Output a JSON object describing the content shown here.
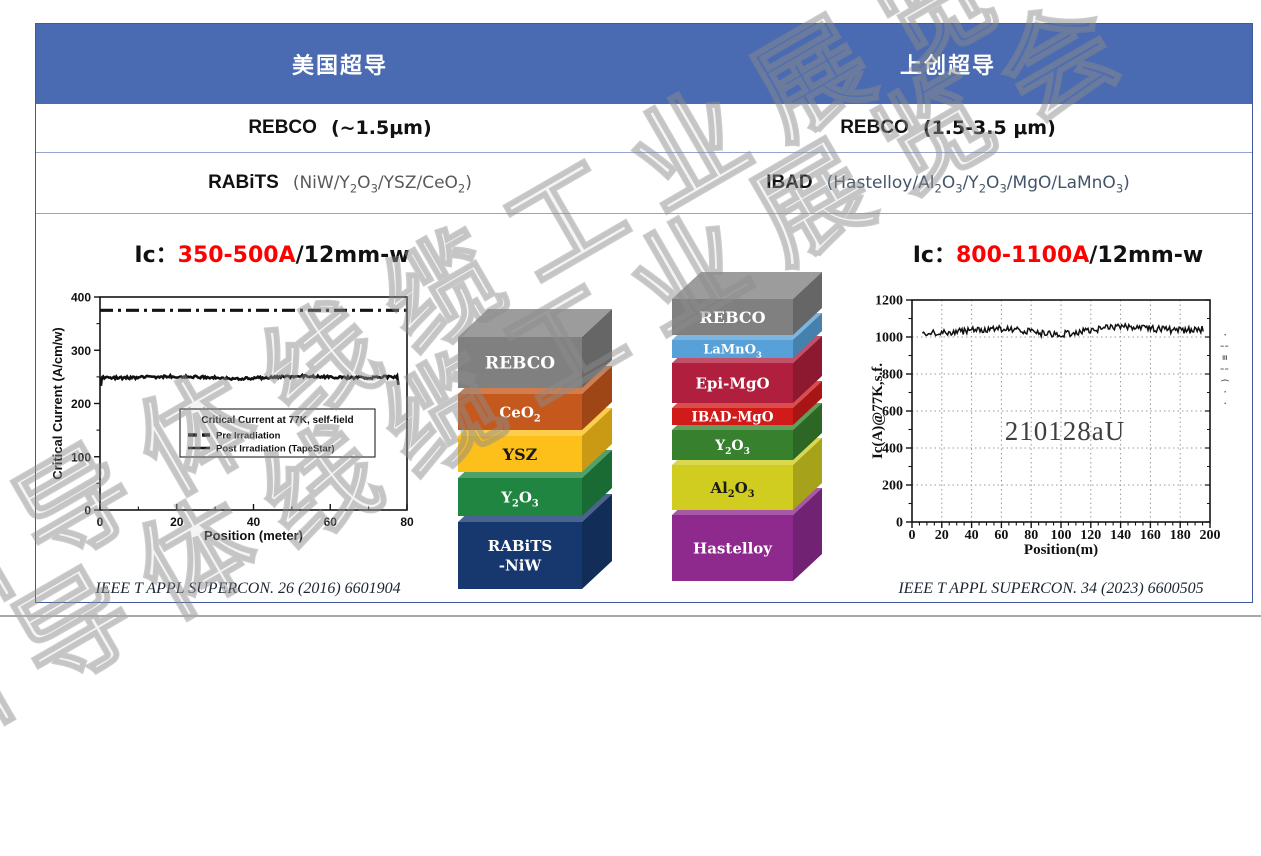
{
  "slide": {
    "companies": {
      "left": "美国超导",
      "right": "上创超导"
    },
    "film_row": {
      "left_name": "REBCO",
      "left_note": "(~1.5μm)",
      "right_name": "REBCO",
      "right_note": "(1.5-3.5 μm)"
    },
    "substrate_row": {
      "left_name": "RABiTS",
      "left_note": "(NiW/Y₂O₃/YSZ/CeO₂)",
      "right_name": "IBAD",
      "right_note": "(Hastelloy/Al₂O₃/Y₂O₃/MgO/LaMnO₃)"
    },
    "ic_left": {
      "prefix": "Ic：",
      "value": "350-500A",
      "suffix": "/12mm-w"
    },
    "ic_right": {
      "prefix": "Ic：",
      "value": "800-1100A",
      "suffix": "/12mm-w"
    },
    "citation_left": "IEEE T APPL SUPERCON. 26 (2016) 6601904",
    "citation_right": "IEEE T APPL SUPERCON. 34 (2023) 6600505",
    "watermark": "常州导体线缆工业展览会",
    "edge_fragment": "·¦≡¦(··"
  },
  "colors": {
    "header_bg": "#4a6ab2",
    "row_border": "#93a4cc",
    "table_border": "#40589c",
    "accent_red": "#ff0000",
    "note_gray": "#595959",
    "note_blue": "#44546a",
    "bottom_rule": "#a8a8a8"
  },
  "stacks": {
    "left": {
      "layers": [
        {
          "label": "REBCO",
          "color": "#808080",
          "text_color": "#ffffff"
        },
        {
          "label": "CeO₂",
          "color": "#c5581c",
          "text_color": "#ffffff"
        },
        {
          "label": "YSZ",
          "color": "#fdc01a",
          "text_color": "#1a1a1a"
        },
        {
          "label": "Y₂O₃",
          "color": "#1f8540",
          "text_color": "#ffffff"
        },
        {
          "label": "RABiTS\n-NiW",
          "color": "#16386e",
          "text_color": "#ffffff"
        }
      ]
    },
    "right": {
      "layers": [
        {
          "label": "REBCO",
          "color": "#808080",
          "text_color": "#ffffff"
        },
        {
          "label": "LaMnO₃",
          "color": "#58a0d8",
          "text_color": "#ffffff"
        },
        {
          "label": "Epi-MgO",
          "color": "#b01f3d",
          "text_color": "#ffffff"
        },
        {
          "label": "IBAD-MgO",
          "color": "#d11a1a",
          "text_color": "#ffffff"
        },
        {
          "label": "Y₂O₃",
          "color": "#37812e",
          "text_color": "#ffffff"
        },
        {
          "label": "Al₂O₃",
          "color": "#d0cc20",
          "text_color": "#1a1a1a"
        },
        {
          "label": "Hastelloy",
          "color": "#8e2a8e",
          "text_color": "#ffffff"
        }
      ]
    }
  },
  "chart_data": [
    {
      "type": "line",
      "panel": "left",
      "ylabel": "Critical Current (A/cm/w)",
      "xlabel": "Position (meter)",
      "xlim": [
        0,
        80
      ],
      "ylim": [
        0,
        400
      ],
      "xticks": [
        0,
        20,
        40,
        60,
        80
      ],
      "yticks": [
        0,
        100,
        200,
        300,
        400
      ],
      "grid": false,
      "legend": {
        "title": "Critical Current at 77K, self-field",
        "entries": [
          {
            "label": "Pre Irradiation",
            "style": "dashdot"
          },
          {
            "label": "Post Irradiation (TapeStar)",
            "style": "solid"
          }
        ]
      },
      "series": [
        {
          "name": "Pre Irradiation",
          "style": "dashdot",
          "level": 375,
          "x_start": 0,
          "x_end": 80
        },
        {
          "name": "Post Irradiation (TapeStar)",
          "style": "solid",
          "level": 250,
          "x_start": 0.5,
          "x_end": 77.5
        }
      ]
    },
    {
      "type": "line",
      "panel": "right",
      "ylabel": "Ic(A)@77K,s.f.",
      "xlabel": "Position(m)",
      "xlim": [
        0,
        200
      ],
      "ylim": [
        0,
        1200
      ],
      "xticks": [
        0,
        20,
        40,
        60,
        80,
        100,
        120,
        140,
        160,
        180,
        200
      ],
      "yticks": [
        0,
        200,
        400,
        600,
        800,
        1000,
        1200
      ],
      "grid": true,
      "annotation": "210128aU",
      "series": [
        {
          "name": "Ic",
          "style": "solid",
          "level": 1040,
          "x_start": 7,
          "x_end": 196
        }
      ]
    }
  ]
}
